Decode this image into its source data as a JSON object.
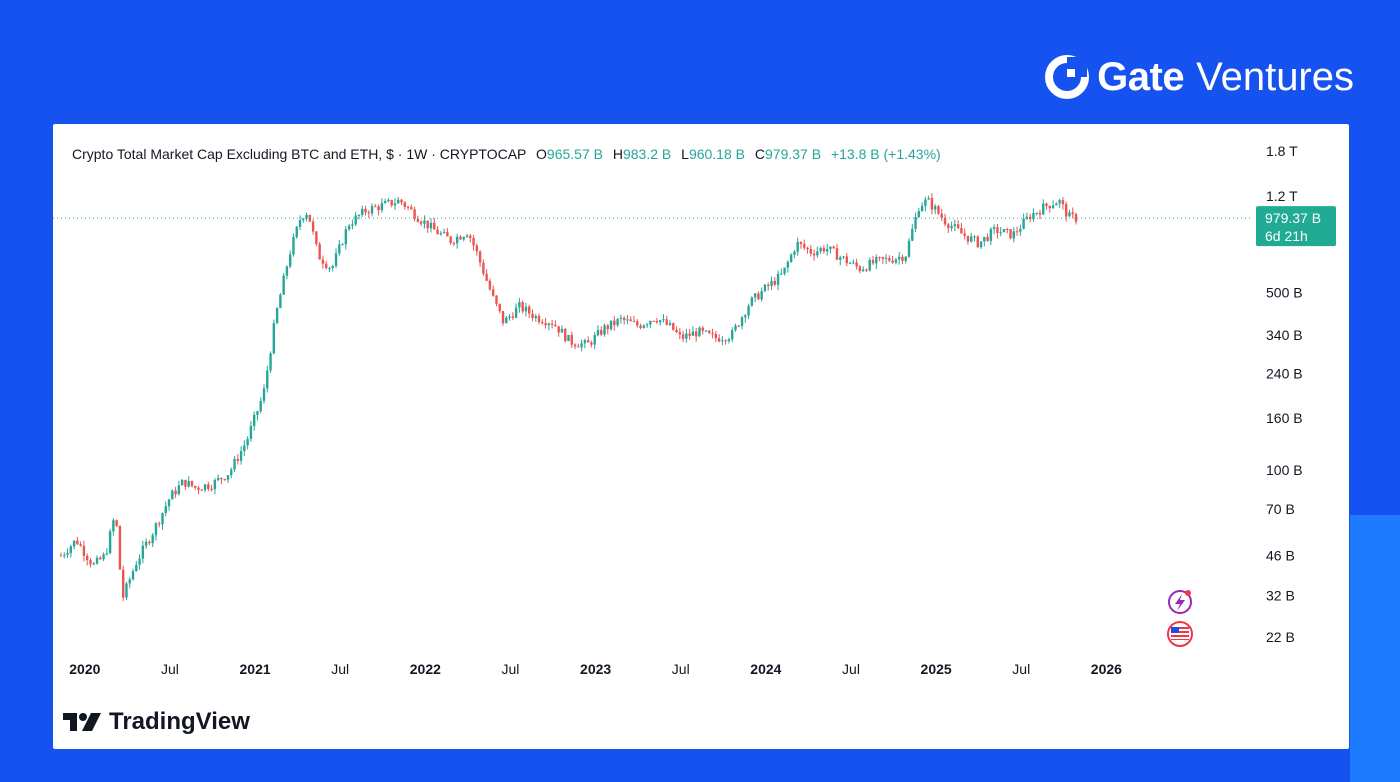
{
  "brand": {
    "name_bold": "Gate",
    "name_light": "Ventures"
  },
  "footer": {
    "logo_text": "TradingView"
  },
  "chart_data": {
    "type": "candlestick",
    "title": "Crypto Total Market Cap Excluding BTC and ETH, $ · 1W · CRYPTOCAP",
    "ohlc": {
      "O": "965.57 B",
      "H": "983.2 B",
      "L": "960.18 B",
      "C": "979.37 B",
      "change": "+13.8 B (+1.43%)"
    },
    "price_label": {
      "value": "979.37 B",
      "countdown": "6d 21h"
    },
    "last_close_billions": 979.37,
    "y_scale": "log",
    "y_ticks": [
      {
        "label": "1.8 T",
        "value": 1800
      },
      {
        "label": "1.2 T",
        "value": 1200
      },
      {
        "label": "500 B",
        "value": 500
      },
      {
        "label": "340 B",
        "value": 340
      },
      {
        "label": "240 B",
        "value": 240
      },
      {
        "label": "160 B",
        "value": 160
      },
      {
        "label": "100 B",
        "value": 100
      },
      {
        "label": "70 B",
        "value": 70
      },
      {
        "label": "46 B",
        "value": 46
      },
      {
        "label": "32 B",
        "value": 32
      },
      {
        "label": "22 B",
        "value": 22
      }
    ],
    "x_ticks": [
      {
        "label": "2020",
        "year": 2020.0,
        "bold": true
      },
      {
        "label": "Jul",
        "year": 2020.5,
        "bold": false
      },
      {
        "label": "2021",
        "year": 2021.0,
        "bold": true
      },
      {
        "label": "Jul",
        "year": 2021.5,
        "bold": false
      },
      {
        "label": "2022",
        "year": 2022.0,
        "bold": true
      },
      {
        "label": "Jul",
        "year": 2022.5,
        "bold": false
      },
      {
        "label": "2023",
        "year": 2023.0,
        "bold": true
      },
      {
        "label": "Jul",
        "year": 2023.5,
        "bold": false
      },
      {
        "label": "2024",
        "year": 2024.0,
        "bold": true
      },
      {
        "label": "Jul",
        "year": 2024.5,
        "bold": false
      },
      {
        "label": "2025",
        "year": 2025.0,
        "bold": true
      },
      {
        "label": "Jul",
        "year": 2025.5,
        "bold": false
      },
      {
        "label": "2026",
        "year": 2026.0,
        "bold": true
      }
    ],
    "x_range": [
      2019.86,
      2026.45
    ],
    "y_range_billions": [
      18,
      2300
    ],
    "colors": {
      "up": "#26a69a",
      "down": "#ef5350",
      "label_bg": "#22ab94"
    },
    "close_path_billions": [
      [
        2019.86,
        46
      ],
      [
        2019.95,
        53
      ],
      [
        2020.05,
        42
      ],
      [
        2020.12,
        46
      ],
      [
        2020.18,
        68
      ],
      [
        2020.22,
        31
      ],
      [
        2020.3,
        43
      ],
      [
        2020.4,
        57
      ],
      [
        2020.5,
        78
      ],
      [
        2020.58,
        90
      ],
      [
        2020.65,
        85
      ],
      [
        2020.75,
        88
      ],
      [
        2020.85,
        98
      ],
      [
        2020.95,
        130
      ],
      [
        2021.05,
        200
      ],
      [
        2021.12,
        400
      ],
      [
        2021.2,
        700
      ],
      [
        2021.27,
        1000
      ],
      [
        2021.31,
        1040
      ],
      [
        2021.37,
        700
      ],
      [
        2021.45,
        620
      ],
      [
        2021.55,
        930
      ],
      [
        2021.65,
        1050
      ],
      [
        2021.75,
        1100
      ],
      [
        2021.85,
        1150
      ],
      [
        2021.95,
        1000
      ],
      [
        2022.05,
        880
      ],
      [
        2022.15,
        800
      ],
      [
        2022.25,
        870
      ],
      [
        2022.3,
        720
      ],
      [
        2022.4,
        470
      ],
      [
        2022.46,
        380
      ],
      [
        2022.55,
        440
      ],
      [
        2022.65,
        400
      ],
      [
        2022.75,
        380
      ],
      [
        2022.85,
        320
      ],
      [
        2022.95,
        310
      ],
      [
        2023.05,
        360
      ],
      [
        2023.15,
        390
      ],
      [
        2023.25,
        370
      ],
      [
        2023.35,
        400
      ],
      [
        2023.45,
        360
      ],
      [
        2023.5,
        330
      ],
      [
        2023.6,
        350
      ],
      [
        2023.7,
        330
      ],
      [
        2023.8,
        340
      ],
      [
        2023.9,
        450
      ],
      [
        2024.0,
        520
      ],
      [
        2024.1,
        590
      ],
      [
        2024.18,
        780
      ],
      [
        2024.27,
        720
      ],
      [
        2024.35,
        750
      ],
      [
        2024.45,
        680
      ],
      [
        2024.55,
        620
      ],
      [
        2024.65,
        660
      ],
      [
        2024.75,
        680
      ],
      [
        2024.82,
        700
      ],
      [
        2024.9,
        1100
      ],
      [
        2024.95,
        1150
      ],
      [
        2025.05,
        960
      ],
      [
        2025.15,
        850
      ],
      [
        2025.25,
        780
      ],
      [
        2025.35,
        880
      ],
      [
        2025.45,
        840
      ],
      [
        2025.55,
        1000
      ],
      [
        2025.65,
        1100
      ],
      [
        2025.72,
        1150
      ],
      [
        2025.78,
        990
      ],
      [
        2025.83,
        979
      ]
    ]
  }
}
